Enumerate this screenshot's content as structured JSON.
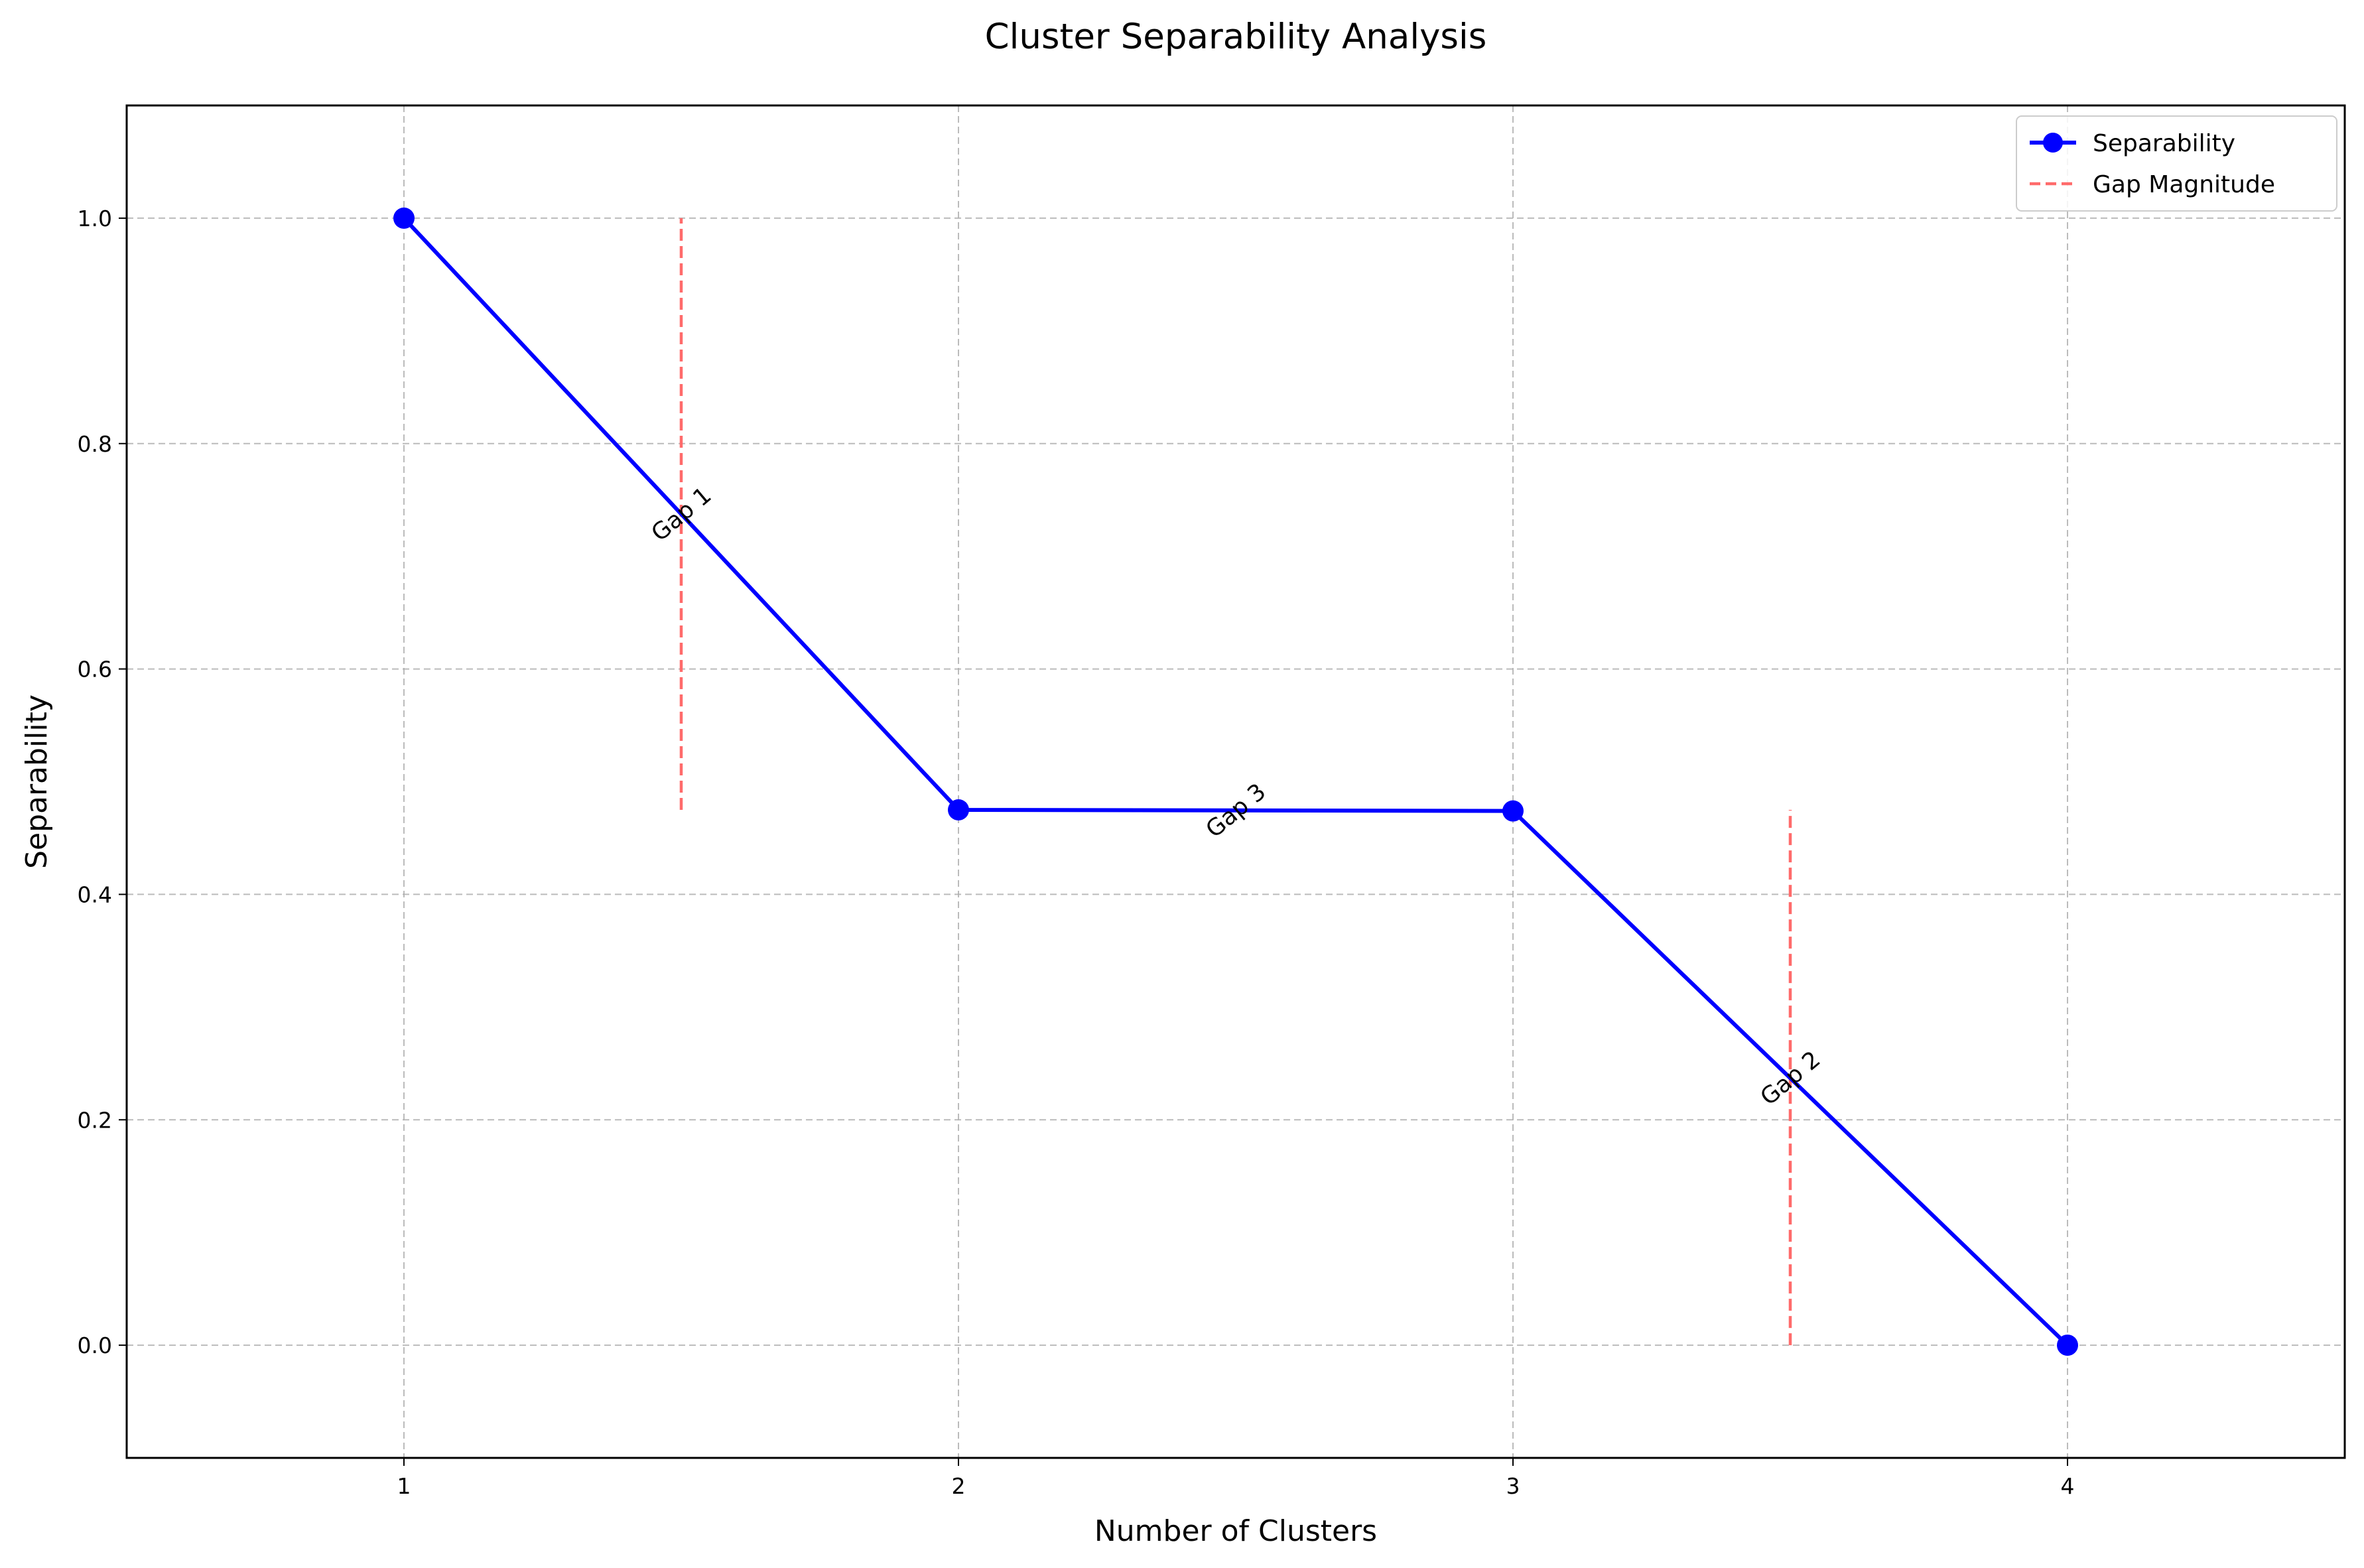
{
  "chart_data": {
    "type": "line",
    "title": "Cluster Separability Analysis",
    "xlabel": "Number of Clusters",
    "ylabel": "Separability",
    "xlim": [
      0.5,
      4.5
    ],
    "ylim": [
      -0.1,
      1.1
    ],
    "xticks": [
      1,
      2,
      3,
      4
    ],
    "yticks": [
      0.0,
      0.2,
      0.4,
      0.6,
      0.8,
      1.0
    ],
    "xtick_labels": [
      "1",
      "2",
      "3",
      "4"
    ],
    "ytick_labels": [
      "0.0",
      "0.2",
      "0.4",
      "0.6",
      "0.8",
      "1.0"
    ],
    "grid": true,
    "legend_position": "top-right",
    "series": [
      {
        "name": "Separability",
        "x": [
          1,
          2,
          3,
          4
        ],
        "values": [
          1.0,
          0.475,
          0.474,
          0.0
        ],
        "color": "#0000ff",
        "style": "solid",
        "marker": "circle"
      }
    ],
    "gap_lines": {
      "name": "Gap Magnitude",
      "color": "#ff6b6b",
      "style": "dashed",
      "lines": [
        {
          "x": 1.5,
          "y_from": 0.475,
          "y_to": 1.0
        },
        {
          "x": 3.5,
          "y_from": 0.0,
          "y_to": 0.475
        }
      ]
    },
    "annotations": [
      {
        "text": "Gap 1",
        "x": 1.5,
        "y": 0.7375,
        "angle": -40
      },
      {
        "text": "Gap 3",
        "x": 2.5,
        "y": 0.4745,
        "angle": -40
      },
      {
        "text": "Gap 2",
        "x": 3.5,
        "y": 0.237,
        "angle": -40
      }
    ],
    "legend": [
      {
        "label": "Separability",
        "kind": "line-marker",
        "color": "#0000ff"
      },
      {
        "label": "Gap Magnitude",
        "kind": "dashed",
        "color": "#ff6b6b"
      }
    ]
  }
}
